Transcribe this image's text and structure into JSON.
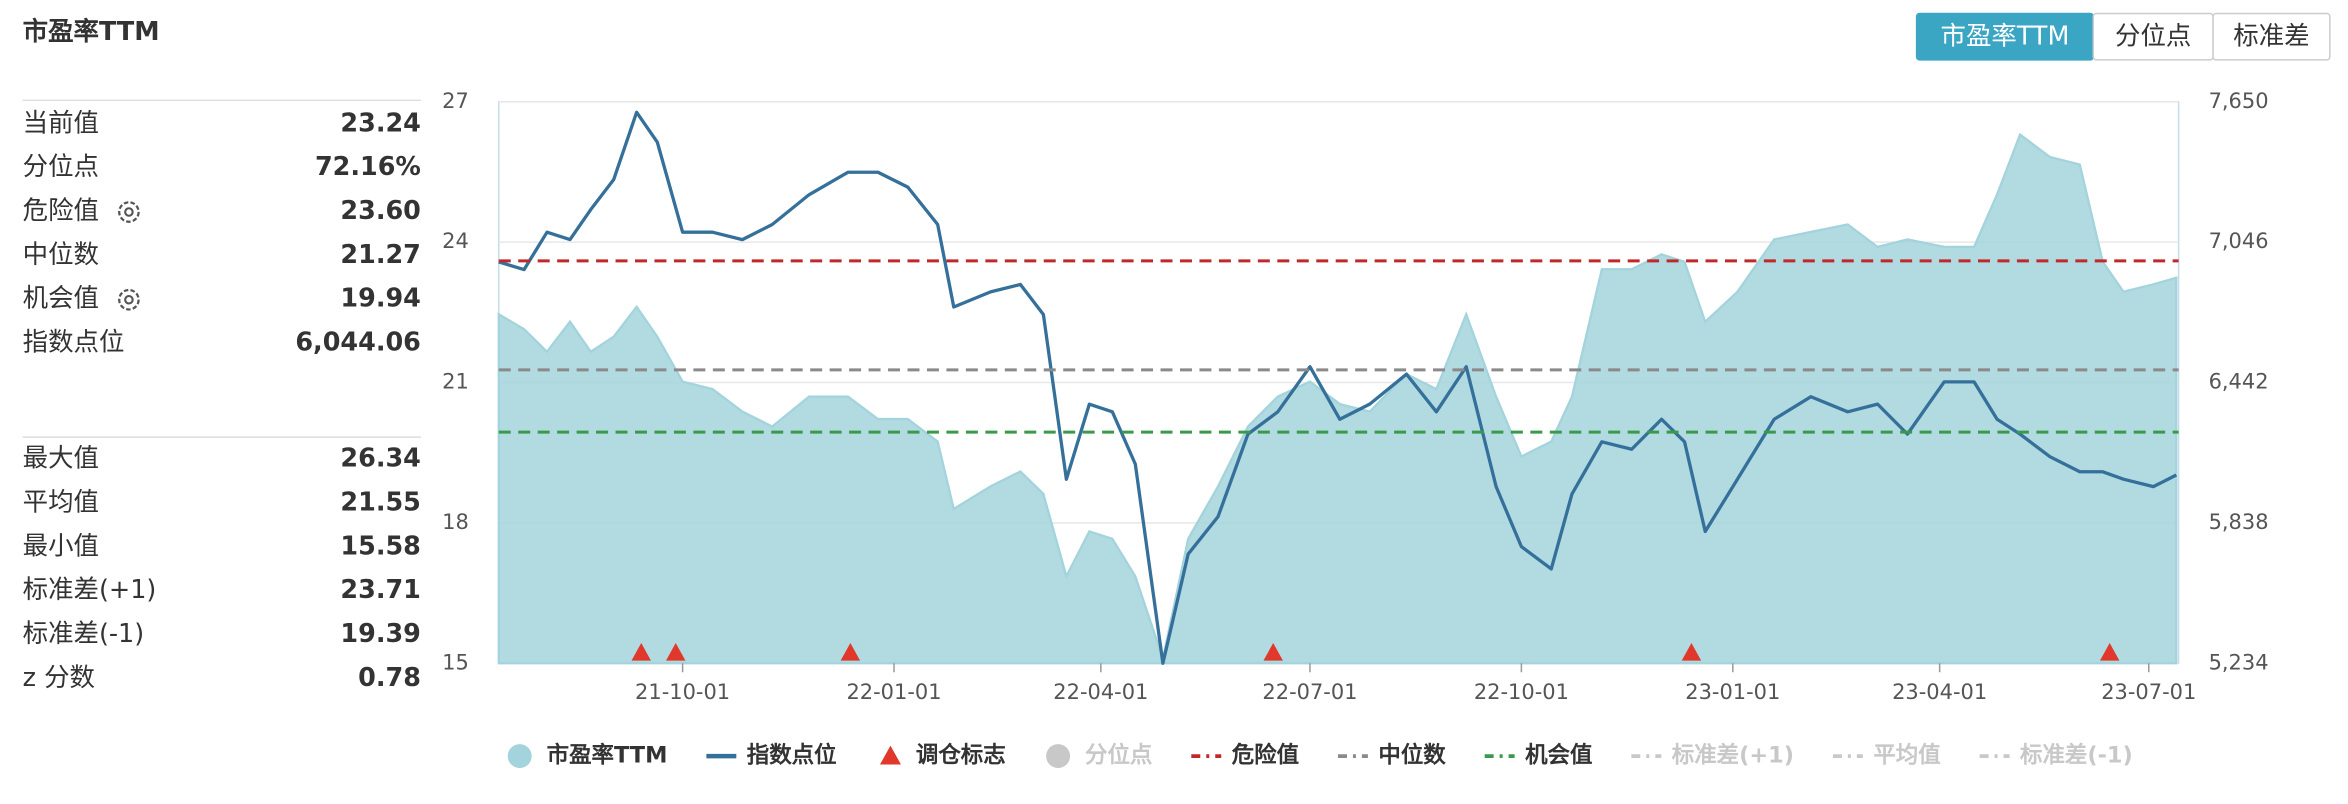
{
  "header": {
    "title": "市盈率TTM",
    "tabs": [
      "市盈率TTM",
      "分位点",
      "标准差"
    ],
    "active_tab": 0
  },
  "stats": {
    "current": [
      {
        "label": "当前值",
        "value": "23.24"
      },
      {
        "label": "分位点",
        "value": "72.16%"
      },
      {
        "label": "危险值",
        "value": "23.60",
        "gear": true
      },
      {
        "label": "中位数",
        "value": "21.27"
      },
      {
        "label": "机会值",
        "value": "19.94",
        "gear": true
      },
      {
        "label": "指数点位",
        "value": "6,044.06"
      }
    ],
    "summary": [
      {
        "label": "最大值",
        "value": "26.34"
      },
      {
        "label": "平均值",
        "value": "21.55"
      },
      {
        "label": "最小值",
        "value": "15.58"
      },
      {
        "label": "标准差(+1)",
        "value": "23.71"
      },
      {
        "label": "标准差(-1)",
        "value": "19.39"
      },
      {
        "label": "z 分数",
        "value": "0.78"
      }
    ]
  },
  "chart_data": {
    "type": "combo",
    "x": [
      "21-07-13",
      "21-07-24",
      "21-08-03",
      "21-08-13",
      "21-08-22",
      "21-09-01",
      "21-09-11",
      "21-09-20",
      "21-10-01",
      "21-10-14",
      "21-10-27",
      "21-11-09",
      "21-11-25",
      "21-12-12",
      "21-12-25",
      "22-01-07",
      "22-01-20",
      "22-01-27",
      "22-02-12",
      "22-02-25",
      "22-03-07",
      "22-03-17",
      "22-03-27",
      "22-04-06",
      "22-04-16",
      "22-04-28",
      "22-05-09",
      "22-05-22",
      "22-06-04",
      "22-06-17",
      "22-07-01",
      "22-07-14",
      "22-07-27",
      "22-08-12",
      "22-08-25",
      "22-09-07",
      "22-09-20",
      "22-10-01",
      "22-10-14",
      "22-10-23",
      "22-11-05",
      "22-11-18",
      "22-12-01",
      "22-12-11",
      "22-12-20",
      "23-01-03",
      "23-01-19",
      "23-02-04",
      "23-02-20",
      "23-03-05",
      "23-03-18",
      "23-04-03",
      "23-04-16",
      "23-04-26",
      "23-05-06",
      "23-05-19",
      "23-06-01",
      "23-06-11",
      "23-06-20",
      "23-07-03",
      "23-07-13"
    ],
    "series": [
      {
        "name": "市盈率TTM",
        "kind": "area",
        "axis": "y",
        "color": "#a3d3dc",
        "values": [
          22.46,
          22.14,
          21.66,
          22.3,
          21.66,
          21.98,
          22.62,
          21.98,
          21.02,
          20.86,
          20.38,
          20.06,
          20.7,
          20.7,
          20.22,
          20.22,
          19.74,
          18.3,
          18.78,
          19.1,
          18.62,
          16.86,
          17.82,
          17.66,
          16.86,
          15.1,
          17.66,
          18.78,
          20.06,
          20.7,
          21.02,
          20.54,
          20.38,
          21.18,
          20.86,
          22.46,
          20.7,
          19.42,
          19.74,
          20.7,
          23.42,
          23.42,
          23.74,
          23.58,
          22.3,
          22.94,
          24.06,
          24.22,
          24.38,
          23.9,
          24.06,
          23.9,
          23.9,
          25.02,
          26.3,
          25.82,
          25.66,
          23.58,
          22.94,
          23.1,
          23.24
        ]
      },
      {
        "name": "指数点位",
        "kind": "line",
        "axis": "y2",
        "color": "#35709a",
        "values": [
          6961,
          6928,
          7089,
          7057,
          7186,
          7315,
          7605,
          7476,
          7089,
          7089,
          7057,
          7122,
          7250,
          7347,
          7347,
          7283,
          7122,
          6767,
          6832,
          6864,
          6735,
          6026,
          6349,
          6316,
          6091,
          5234,
          5704,
          5865,
          6220,
          6316,
          6510,
          6284,
          6349,
          6478,
          6316,
          6510,
          5994,
          5736,
          5640,
          5962,
          6187,
          6155,
          6284,
          6187,
          5801,
          6026,
          6284,
          6381,
          6316,
          6349,
          6220,
          6445,
          6445,
          6284,
          6220,
          6123,
          6058,
          6058,
          6026,
          5994,
          6044.06
        ]
      }
    ],
    "signals": {
      "name": "调仓标志",
      "color": "#e0382b",
      "x": [
        "21-09-13",
        "21-09-28",
        "21-12-13",
        "22-06-15",
        "22-12-14",
        "23-06-14"
      ]
    },
    "hidden_series": [
      {
        "name": "分位点"
      }
    ],
    "reference_lines": [
      {
        "name": "危险值",
        "value": 23.6,
        "color": "#c0282a",
        "visible": true
      },
      {
        "name": "中位数",
        "value": 21.27,
        "color": "#8a8a8a",
        "visible": true
      },
      {
        "name": "机会值",
        "value": 19.94,
        "color": "#3a9a4a",
        "visible": true
      },
      {
        "name": "标准差(+1)",
        "visible": false
      },
      {
        "name": "平均值",
        "visible": false
      },
      {
        "name": "标准差(-1)",
        "visible": false
      }
    ],
    "xlim": [
      "21-07-13",
      "23-07-14"
    ],
    "xticks": [
      "21-10-01",
      "22-01-01",
      "22-04-01",
      "22-07-01",
      "22-10-01",
      "23-01-01",
      "23-04-01",
      "23-07-01"
    ],
    "ylim": [
      15,
      27
    ],
    "yticks": [
      15,
      18,
      21,
      24,
      27
    ],
    "y2lim": [
      5234,
      7650
    ],
    "y2ticks": [
      {
        "value": 5234,
        "label": "5,234"
      },
      {
        "value": 5838,
        "label": "5,838"
      },
      {
        "value": 6442,
        "label": "6,442"
      },
      {
        "value": 7046,
        "label": "7,046"
      },
      {
        "value": 7650,
        "label": "7,650"
      }
    ],
    "grid": true
  }
}
